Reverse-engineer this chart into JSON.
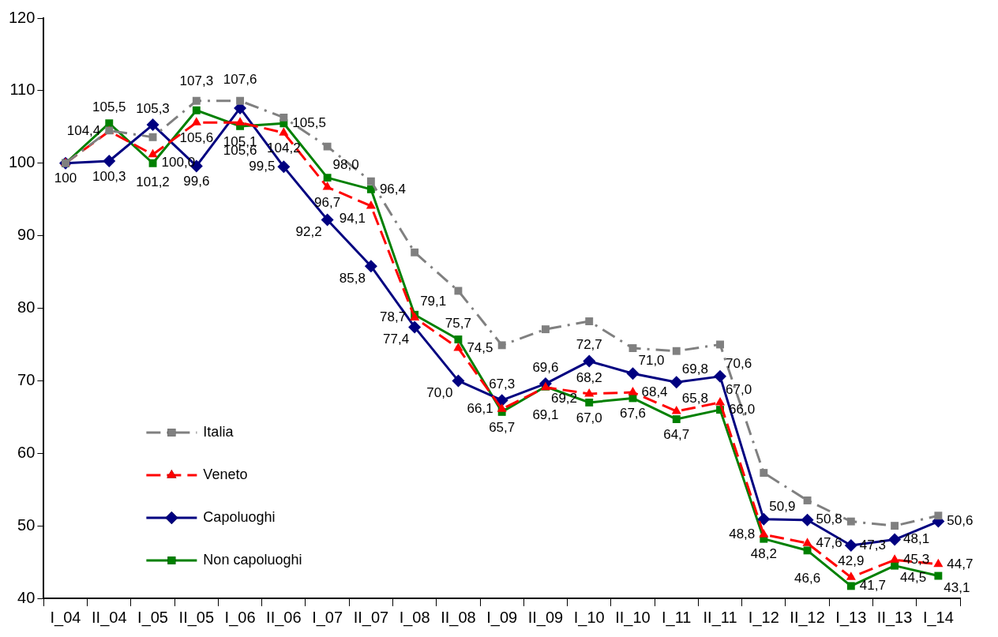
{
  "chart_data": {
    "type": "line",
    "categories": [
      "I_04",
      "II_04",
      "I_05",
      "II_05",
      "I_06",
      "II_06",
      "I_07",
      "II_07",
      "I_08",
      "II_08",
      "I_09",
      "II_09",
      "I_10",
      "II_10",
      "I_11",
      "II_11",
      "I_12",
      "II_12",
      "I_13",
      "II_13",
      "I_14"
    ],
    "series": [
      {
        "name": "Italia",
        "color": "#808080",
        "marker": "square",
        "line_style": "dashdot",
        "values": [
          100,
          104.5,
          103.6,
          108.6,
          108.6,
          106.3,
          102.3,
          97.5,
          87.7,
          82.4,
          74.9,
          77.1,
          78.2,
          74.5,
          74.1,
          75.0,
          57.3,
          53.5,
          50.6,
          50.0,
          51.4
        ]
      },
      {
        "name": "Veneto",
        "color": "#ff0000",
        "marker": "triangle",
        "line_style": "dashed",
        "values": [
          100,
          104.4,
          101.2,
          105.6,
          105.6,
          104.2,
          96.7,
          94.1,
          78.7,
          74.5,
          66.1,
          69.1,
          68.2,
          68.4,
          65.8,
          67.0,
          48.8,
          47.6,
          42.9,
          45.3,
          44.7
        ],
        "value_labels": [
          null,
          "104,4",
          "101,2",
          "105,6",
          "105,6",
          "104,2",
          "96,7",
          "94,1",
          "78,7",
          "74,5",
          "66,1",
          "69,1",
          "68,2",
          "68,4",
          "65,8",
          "67,0",
          "48,8",
          "47,6",
          "42,9",
          "45,3",
          "44,7"
        ]
      },
      {
        "name": "Capoluoghi",
        "color": "#000080",
        "marker": "diamond",
        "line_style": "solid",
        "values": [
          100,
          100.3,
          105.3,
          99.6,
          107.6,
          99.5,
          92.2,
          85.8,
          77.4,
          70.0,
          67.3,
          69.6,
          72.7,
          71.0,
          69.8,
          70.6,
          50.9,
          50.8,
          47.3,
          48.1,
          50.6
        ],
        "value_labels": [
          null,
          "100,3",
          "105,3",
          "99,6",
          "107,6",
          "99,5",
          "92,2",
          "85,8",
          "77,4",
          "70,0",
          "67,3",
          "69,6",
          "72,7",
          "71,0",
          "69,8",
          "70,6",
          "50,9",
          "50,8",
          "47,3",
          "48,1",
          "50,6"
        ]
      },
      {
        "name": "Non capoluoghi",
        "color": "#008000",
        "marker": "square",
        "line_style": "solid",
        "values": [
          100,
          105.5,
          100.0,
          107.3,
          105.1,
          105.5,
          98.0,
          96.4,
          79.1,
          75.7,
          65.7,
          69.2,
          67.0,
          67.6,
          64.7,
          66.0,
          48.2,
          46.6,
          41.7,
          44.5,
          43.1
        ],
        "value_labels": [
          "100",
          "105,5",
          "100,0",
          "107,3",
          "105,1",
          "105,5",
          "98,0",
          "96,4",
          "79,1",
          "75,7",
          "65,7",
          "69,2",
          "67,0",
          "67,6",
          "64,7",
          "66,0",
          "48,2",
          "46,6",
          "41,7",
          "44,5",
          "43,1"
        ]
      }
    ],
    "ylim": [
      40,
      120
    ],
    "yticks": [
      40,
      50,
      60,
      70,
      80,
      90,
      100,
      110,
      120
    ],
    "grid": false,
    "legend": "bottom left"
  }
}
